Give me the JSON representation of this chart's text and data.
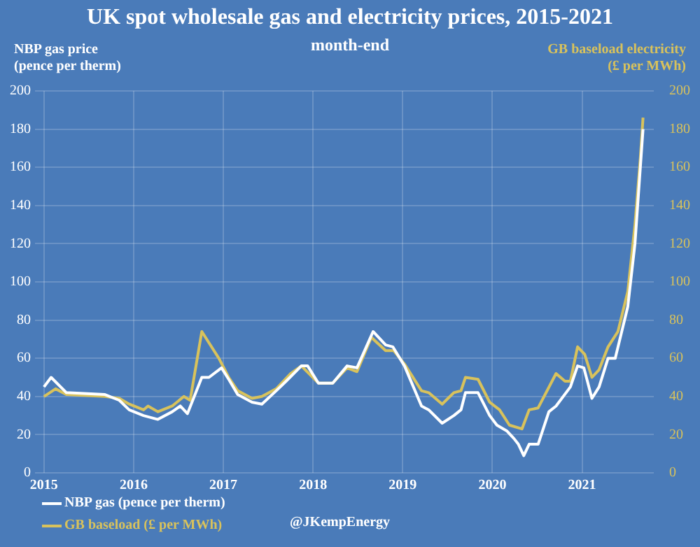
{
  "chart_data": {
    "type": "line",
    "title": "UK spot wholesale gas and electricity prices, 2015-2021",
    "subtitle": "month-end",
    "ylabel": "NBP gas price\n(pence per therm)",
    "y2label": "GB baseload electricity\n(£ per MWh)",
    "xlim": [
      2014.9,
      2021.8
    ],
    "xticks": [
      2015,
      2016,
      2017,
      2018,
      2019,
      2020,
      2021
    ],
    "ylim": [
      0,
      200
    ],
    "yticks": [
      0,
      20,
      40,
      60,
      80,
      100,
      120,
      140,
      160,
      180,
      200
    ],
    "y2lim": [
      0,
      200
    ],
    "y2ticks": [
      0,
      20,
      40,
      60,
      80,
      100,
      120,
      140,
      160,
      180,
      200
    ],
    "grid": true,
    "legend": "bottom left",
    "marker": "none",
    "line_style": "solid",
    "annotations": [
      "@JKempEnergy"
    ],
    "series": [
      {
        "name": "NBP gas (pence per therm)",
        "color": "#ffffff",
        "axis": "y",
        "x": [
          2015.0,
          2015.08,
          2015.25,
          2015.68,
          2015.84,
          2015.95,
          2016.11,
          2016.27,
          2016.43,
          2016.52,
          2016.6,
          2016.76,
          2016.84,
          2016.98,
          2017.06,
          2017.16,
          2017.32,
          2017.43,
          2017.59,
          2017.7,
          2017.87,
          2017.94,
          2018.06,
          2018.22,
          2018.38,
          2018.49,
          2018.67,
          2018.81,
          2018.89,
          2019.02,
          2019.21,
          2019.29,
          2019.44,
          2019.57,
          2019.65,
          2019.7,
          2019.84,
          2019.97,
          2020.05,
          2020.16,
          2020.24,
          2020.29,
          2020.35,
          2020.41,
          2020.51,
          2020.63,
          2020.71,
          2020.87,
          2020.95,
          2021.02,
          2021.11,
          2021.19,
          2021.29,
          2021.37,
          2021.51,
          2021.59,
          2021.65,
          2021.68
        ],
        "values": [
          45,
          50,
          42,
          41,
          38,
          33,
          30,
          28,
          32,
          35,
          31,
          50,
          50,
          55,
          49,
          41,
          37,
          36,
          43,
          48,
          56,
          56,
          47,
          47,
          56,
          55,
          74,
          67,
          66,
          56,
          35,
          33,
          26,
          30,
          33,
          42,
          42,
          30,
          25,
          22,
          18,
          15,
          9,
          15,
          15,
          32,
          35,
          45,
          56,
          55,
          39,
          45,
          60,
          60,
          87,
          120,
          160,
          180
        ]
      },
      {
        "name": "GB baseload (£ per MWh)",
        "color": "#d8c25c",
        "axis": "y2",
        "x": [
          2015.0,
          2015.13,
          2015.25,
          2015.68,
          2015.84,
          2015.95,
          2016.11,
          2016.16,
          2016.27,
          2016.43,
          2016.56,
          2016.63,
          2016.76,
          2016.95,
          2017.06,
          2017.16,
          2017.32,
          2017.43,
          2017.59,
          2017.75,
          2017.87,
          2018.06,
          2018.22,
          2018.38,
          2018.49,
          2018.65,
          2018.81,
          2018.9,
          2019.02,
          2019.21,
          2019.29,
          2019.44,
          2019.57,
          2019.65,
          2019.7,
          2019.84,
          2019.97,
          2020.08,
          2020.19,
          2020.33,
          2020.41,
          2020.51,
          2020.71,
          2020.81,
          2020.87,
          2020.95,
          2021.03,
          2021.11,
          2021.19,
          2021.29,
          2021.4,
          2021.51,
          2021.59,
          2021.65,
          2021.68
        ],
        "values": [
          40,
          44,
          41,
          40,
          39,
          36,
          33,
          35,
          32,
          35,
          40,
          38,
          74,
          60,
          50,
          43,
          39,
          40,
          44,
          52,
          56,
          47,
          47,
          55,
          53,
          71,
          64,
          64,
          57,
          43,
          42,
          36,
          42,
          43,
          50,
          49,
          37,
          33,
          25,
          23,
          33,
          34,
          52,
          48,
          48,
          66,
          62,
          50,
          54,
          66,
          74,
          95,
          130,
          165,
          186
        ]
      }
    ]
  }
}
